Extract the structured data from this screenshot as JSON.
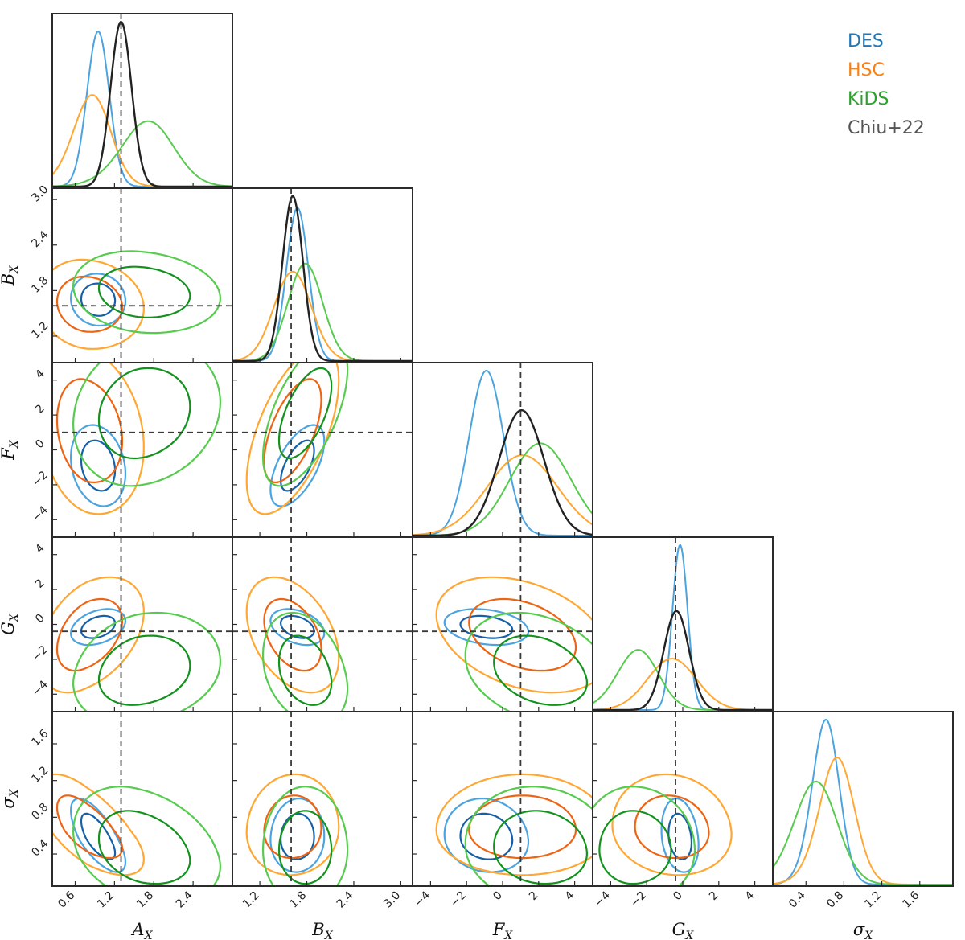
{
  "chart_data": {
    "type": "scatter",
    "title": "",
    "parameters": [
      {
        "key": "A",
        "label": "A",
        "sub": "X",
        "range": [
          0.25,
          3.0
        ],
        "ticks": [
          "0.6",
          "1.2",
          "1.8",
          "2.4"
        ],
        "fiducial": 1.3
      },
      {
        "key": "B",
        "label": "B",
        "sub": "X",
        "range": [
          0.85,
          3.15
        ],
        "ticks": [
          "1.2",
          "1.8",
          "2.4",
          "3.0"
        ],
        "fiducial": 1.6
      },
      {
        "key": "F",
        "label": "F",
        "sub": "X",
        "range": [
          -5.0,
          5.0
        ],
        "ticks": [
          "−4",
          "−2",
          "0",
          "2",
          "4"
        ],
        "fiducial": 1.0
      },
      {
        "key": "G",
        "label": "G",
        "sub": "X",
        "range": [
          -5.0,
          5.0
        ],
        "ticks": [
          "−4",
          "−2",
          "0",
          "2",
          "4"
        ],
        "fiducial": -0.4
      },
      {
        "key": "S",
        "label": "σ",
        "sub": "X",
        "range": [
          0.05,
          1.95
        ],
        "ticks": [
          "0.4",
          "0.8",
          "1.2",
          "1.6"
        ],
        "fiducial": null
      }
    ],
    "legend": {
      "placement": "top-right",
      "entries": [
        {
          "label": "DES",
          "color": "#1f77b4"
        },
        {
          "label": "HSC",
          "color": "#ff7f0e"
        },
        {
          "label": "KiDS",
          "color": "#2ca02c"
        },
        {
          "label": "Chiu+22",
          "color": "#555555"
        }
      ]
    },
    "styles": {
      "DES": {
        "c68": "#1660a8",
        "c95": "#4ba3df"
      },
      "HSC": {
        "c68": "#ee6412",
        "c95": "#ffa732"
      },
      "KiDS": {
        "c68": "#13921d",
        "c95": "#56cb4e"
      },
      "Chiu+22": {
        "c68": "#222222",
        "c95": "#222222"
      }
    },
    "series": [
      {
        "name": "DES",
        "params": {
          "A": {
            "mean": 0.95,
            "sd": 0.17,
            "skew": 0
          },
          "B": {
            "mean": 1.68,
            "sd": 0.14,
            "skew": 0
          },
          "F": {
            "mean": -0.9,
            "sd": 0.95,
            "skew": 0
          },
          "G": {
            "mean": -0.15,
            "sd": 0.42,
            "skew": 0
          },
          "S": {
            "mean": 0.57,
            "sd": 0.15,
            "skew": 0.3
          }
        },
        "corr": {
          "A|B": -0.05,
          "A|F": -0.2,
          "A|G": 0.35,
          "A|S": -0.7,
          "B|F": 0.6,
          "B|G": -0.35,
          "B|S": 0.05,
          "F|G": -0.25,
          "F|S": -0.1,
          "G|S": -0.2
        }
      },
      {
        "name": "HSC",
        "params": {
          "A": {
            "mean": 0.78,
            "sd": 0.3,
            "skew": 0.3
          },
          "B": {
            "mean": 1.62,
            "sd": 0.24,
            "skew": 0
          },
          "F": {
            "mean": 1.1,
            "sd": 1.95,
            "skew": 0
          },
          "G": {
            "mean": -0.6,
            "sd": 1.35,
            "skew": 0
          },
          "S": {
            "mean": 0.66,
            "sd": 0.2,
            "skew": 0.4
          }
        },
        "corr": {
          "A|B": -0.1,
          "A|F": -0.2,
          "A|G": 0.4,
          "A|S": -0.65,
          "B|F": 0.6,
          "B|G": -0.4,
          "B|S": 0.05,
          "F|G": -0.35,
          "F|S": 0.0,
          "G|S": -0.1
        }
      },
      {
        "name": "KiDS",
        "params": {
          "A": {
            "mean": 1.6,
            "sd": 0.42,
            "skew": 0.3
          },
          "B": {
            "mean": 1.78,
            "sd": 0.22,
            "skew": 0
          },
          "F": {
            "mean": 2.1,
            "sd": 1.7,
            "skew": 0
          },
          "G": {
            "mean": -2.8,
            "sd": 1.2,
            "skew": 0.3
          },
          "S": {
            "mean": 0.44,
            "sd": 0.24,
            "skew": 0.3
          }
        },
        "corr": {
          "A|B": -0.15,
          "A|F": 0.15,
          "A|G": 0.2,
          "A|S": -0.3,
          "B|F": 0.6,
          "B|G": -0.3,
          "B|S": 0.0,
          "F|G": -0.3,
          "F|S": -0.1,
          "G|S": 0.0
        }
      },
      {
        "name": "Chiu+22",
        "params": {
          "A": {
            "mean": 1.3,
            "sd": 0.16,
            "skew": 0
          },
          "B": {
            "mean": 1.62,
            "sd": 0.13,
            "skew": 0
          },
          "F": {
            "mean": 1.05,
            "sd": 1.25,
            "skew": 0
          },
          "G": {
            "mean": -0.35,
            "sd": 0.7,
            "skew": 0
          }
        },
        "corr": {}
      }
    ]
  }
}
